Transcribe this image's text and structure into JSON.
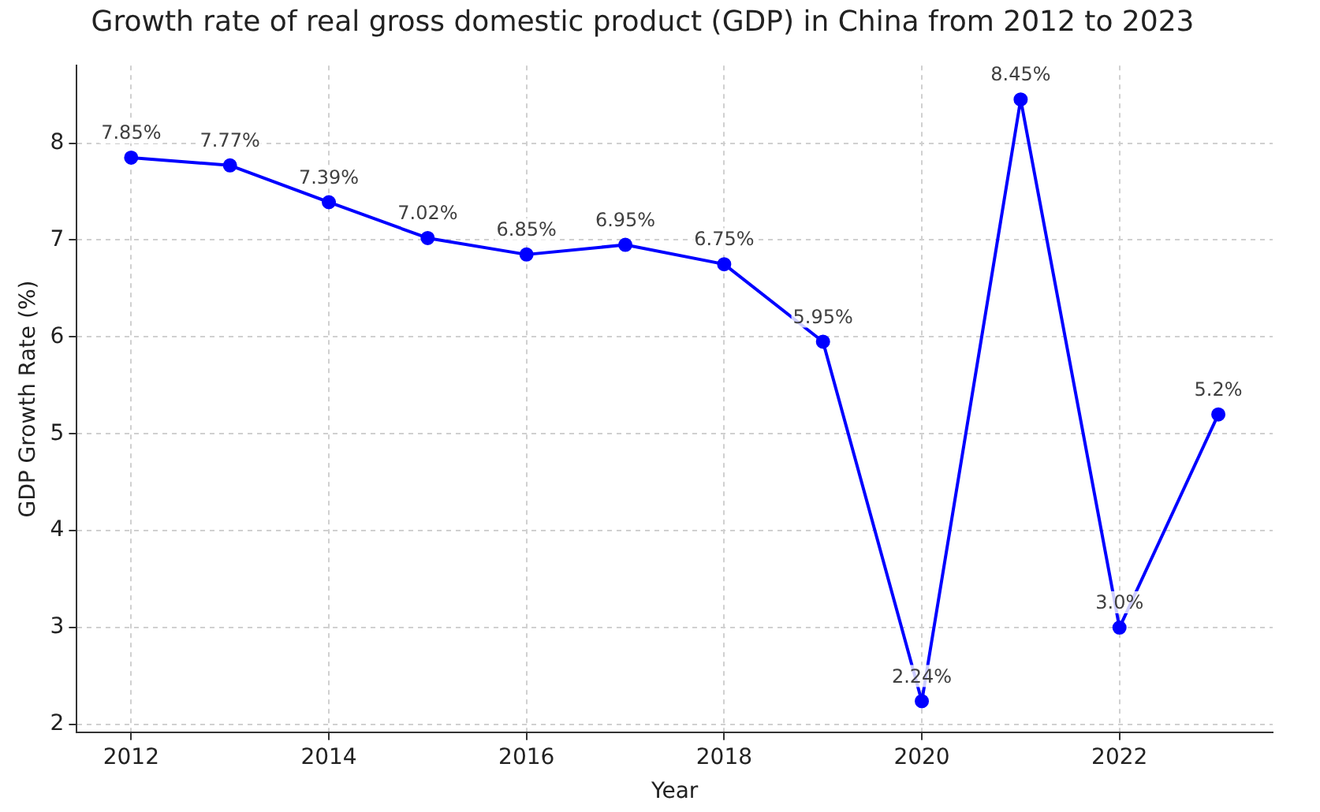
{
  "chart_data": {
    "type": "line",
    "title": "Growth rate of real gross domestic product (GDP) in China from 2012 to 2023",
    "xlabel": "Year",
    "ylabel": "GDP Growth Rate (%)",
    "x": [
      2012,
      2013,
      2014,
      2015,
      2016,
      2017,
      2018,
      2019,
      2020,
      2021,
      2022,
      2023
    ],
    "series": [
      {
        "color": "#0000ff",
        "values": [
          7.85,
          7.77,
          7.39,
          7.02,
          6.85,
          6.95,
          6.75,
          5.95,
          2.24,
          8.45,
          3.0,
          5.2
        ],
        "value_labels": [
          "7.85%",
          "7.77%",
          "7.39%",
          "7.02%",
          "6.85%",
          "6.95%",
          "6.75%",
          "5.95%",
          "2.24%",
          "8.45%",
          "3.0%",
          "5.2%"
        ]
      }
    ],
    "xlim": [
      2011.45,
      2023.55
    ],
    "xticks": [
      2012,
      2014,
      2016,
      2018,
      2020,
      2022
    ],
    "ylim": [
      1.92,
      8.8
    ],
    "yticks": [
      2,
      3,
      4,
      5,
      6,
      7,
      8
    ],
    "grid": true,
    "marker": "circle",
    "line_style": "solid",
    "legend": false
  }
}
